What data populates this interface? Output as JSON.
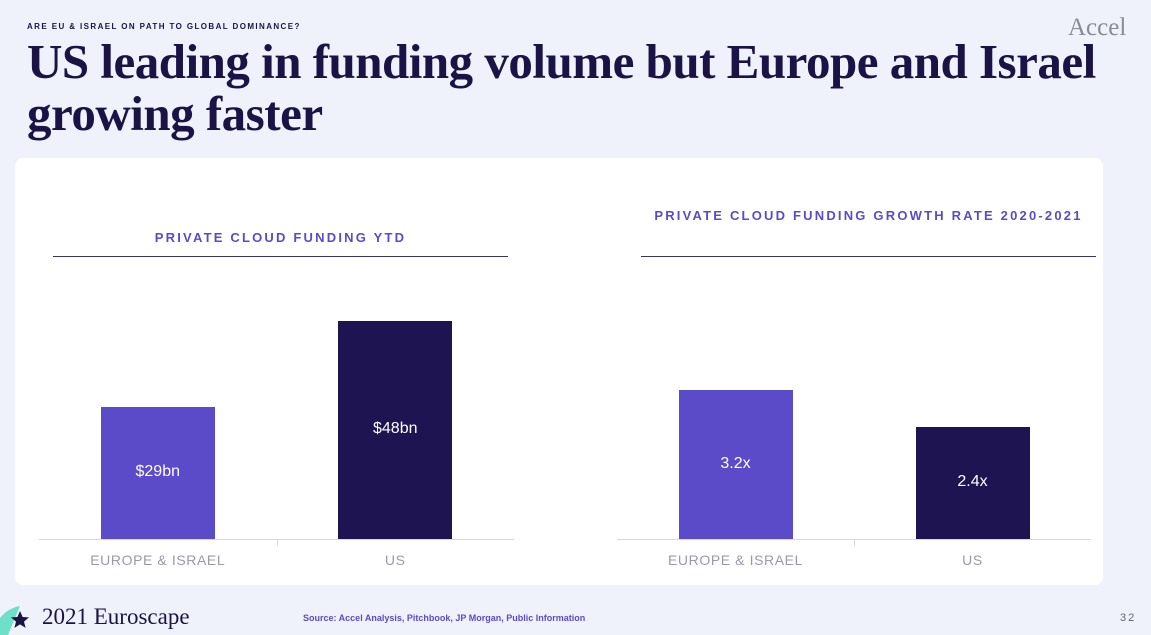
{
  "kicker": "ARE EU & ISRAEL ON PATH TO GLOBAL DOMINANCE?",
  "title": "US leading in funding volume but Europe and Israel growing faster",
  "logo": "Accel",
  "chart_data": [
    {
      "type": "bar",
      "title": "PRIVATE CLOUD FUNDING YTD",
      "categories": [
        "EUROPE & ISRAEL",
        "US"
      ],
      "values": [
        29,
        48
      ],
      "value_labels": [
        "$29bn",
        "$48bn"
      ],
      "colors": [
        "#5b4bc9",
        "#1e1452"
      ]
    },
    {
      "type": "bar",
      "title": "PRIVATE CLOUD FUNDING GROWTH RATE 2020-2021",
      "categories": [
        "EUROPE & ISRAEL",
        "US"
      ],
      "values": [
        3.2,
        2.4
      ],
      "value_labels": [
        "3.2x",
        "2.4x"
      ],
      "colors": [
        "#5b4bc9",
        "#1e1452"
      ]
    }
  ],
  "footer": {
    "brand": "2021 Euroscape",
    "source": "Source: Accel Analysis, Pitchbook, JP Morgan, Public Information",
    "page": "32"
  }
}
